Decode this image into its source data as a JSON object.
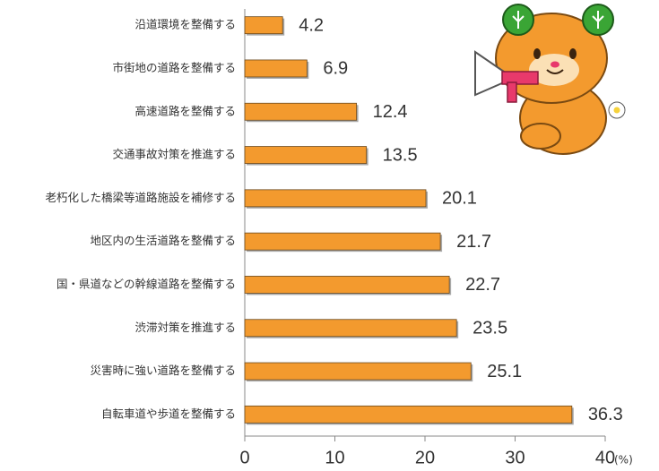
{
  "chart_data": {
    "type": "bar",
    "orientation": "horizontal",
    "categories": [
      "沿道環境を整備する",
      "市街地の道路を整備する",
      "高速道路を整備する",
      "交通事故対策を推進する",
      "老朽化した橋梁等道路施設を補修する",
      "地区内の生活道路を整備する",
      "国・県道などの幹線道路を整備する",
      "渋滞対策を推進する",
      "災害時に強い道路を整備する",
      "自転車道や歩道を整備する"
    ],
    "values": [
      4.2,
      6.9,
      12.4,
      13.5,
      20.1,
      21.7,
      22.7,
      23.5,
      25.1,
      36.3
    ],
    "color": "#f39a2e",
    "xlim": [
      0,
      40
    ],
    "xticks": [
      0,
      10,
      20,
      30,
      40
    ],
    "xlabel": "(%)"
  }
}
